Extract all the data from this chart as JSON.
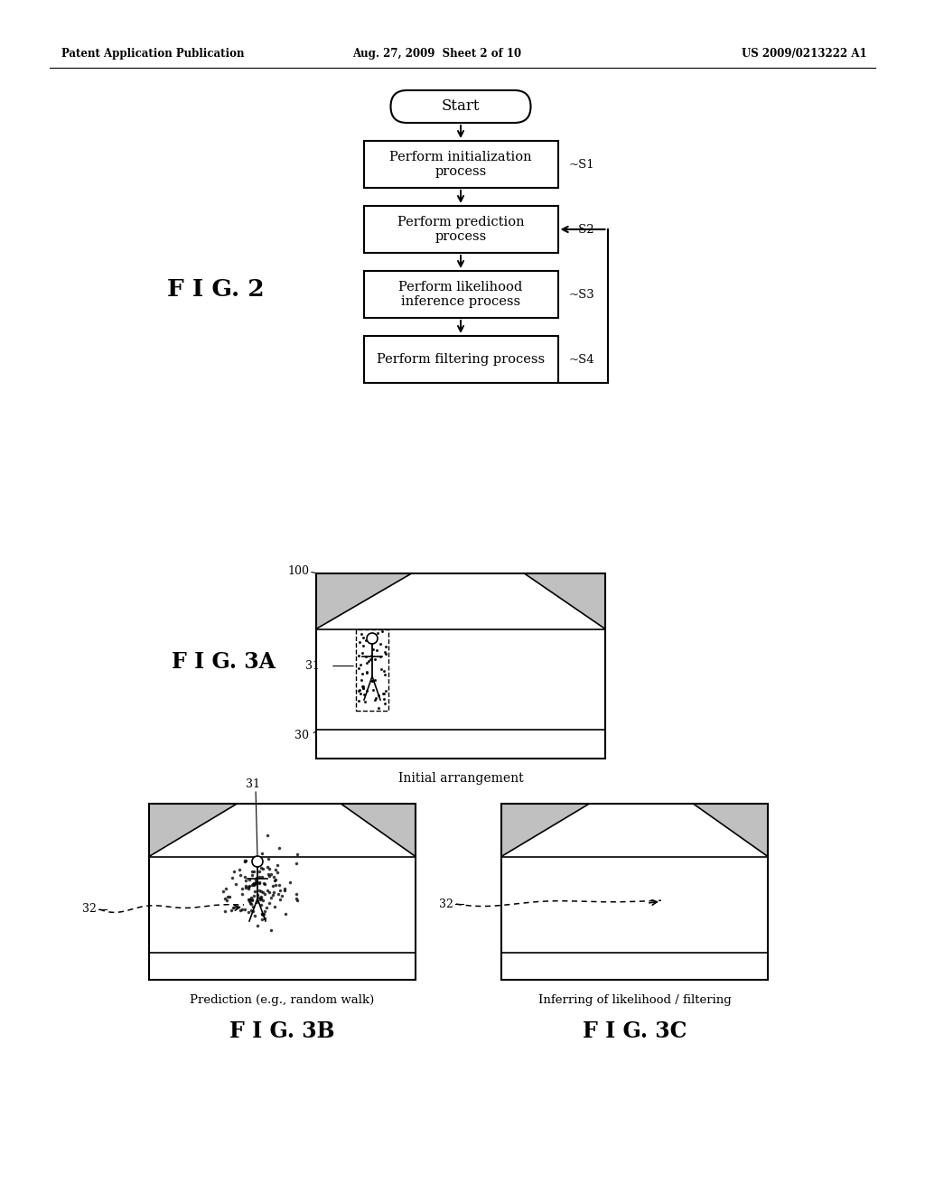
{
  "bg_color": "#ffffff",
  "header_left": "Patent Application Publication",
  "header_mid": "Aug. 27, 2009  Sheet 2 of 10",
  "header_right": "US 2009/0213222 A1",
  "fig2_label": "F I G. 2",
  "flowchart": {
    "start_text": "Start",
    "boxes": [
      {
        "text": "Perform initialization\nprocess",
        "label": "S1"
      },
      {
        "text": "Perform prediction\nprocess",
        "label": "S2"
      },
      {
        "text": "Perform likelihood\ninference process",
        "label": "S3"
      },
      {
        "text": "Perform filtering process",
        "label": "S4"
      }
    ]
  },
  "fig3a_label": "F I G. 3A",
  "fig3a_caption": "Initial arrangement",
  "fig3b_label": "F I G. 3B",
  "fig3b_caption": "Prediction (e.g., random walk)",
  "fig3c_label": "F I G. 3C",
  "fig3c_caption": "Inferring of likelihood / filtering"
}
